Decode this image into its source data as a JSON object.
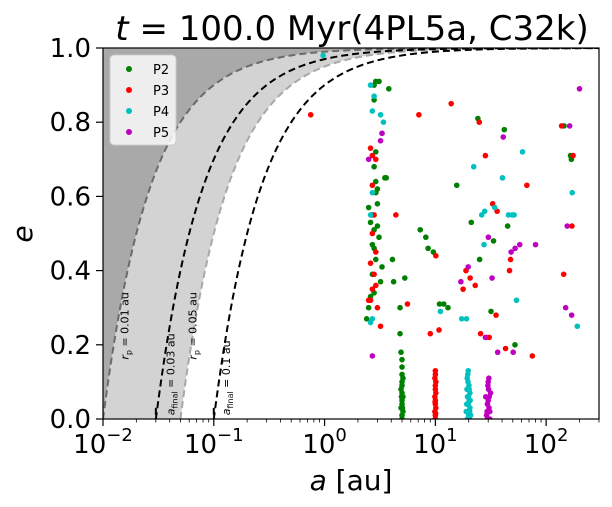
{
  "chart_data": {
    "type": "scatter",
    "title": "t = 100.0 Myr(4PL5a, C32k)",
    "title_parts": {
      "t": "t",
      "eq": " = 100.0 Myr(4PL5a, C32k)"
    },
    "xlabel": {
      "var": "a",
      "unit": " [au]"
    },
    "ylabel": "e",
    "xscale": "log",
    "xlim": [
      0.01,
      300
    ],
    "ylim": [
      0,
      1
    ],
    "x_ticks": [
      {
        "base": "10",
        "exp": "−2",
        "v": 0.01
      },
      {
        "base": "10",
        "exp": "−1",
        "v": 0.1
      },
      {
        "base": "10",
        "exp": "0",
        "v": 1
      },
      {
        "base": "10",
        "exp": "1",
        "v": 10
      },
      {
        "base": "10",
        "exp": "2",
        "v": 100
      }
    ],
    "y_ticks": [
      {
        "label": "0.0",
        "v": 0
      },
      {
        "label": "0.2",
        "v": 0.2
      },
      {
        "label": "0.4",
        "v": 0.4
      },
      {
        "label": "0.6",
        "v": 0.6
      },
      {
        "label": "0.8",
        "v": 0.8
      },
      {
        "label": "1.0",
        "v": 1.0
      }
    ],
    "curves": [
      {
        "name": "rp-0.01",
        "rp": 0.01,
        "style": "dashed-gray"
      },
      {
        "name": "rp-0.05",
        "rp": 0.05,
        "style": "dashed-lightgray"
      },
      {
        "name": "afinal-0.03",
        "rp": 0.03,
        "style": "dashed-black"
      },
      {
        "name": "afinal-0.1",
        "rp": 0.1,
        "style": "dashed-black"
      }
    ],
    "annotations": [
      {
        "name": "rp-001-label",
        "pre": "r",
        "sub": "p",
        "post": " = 0.01 au",
        "x": 0.017,
        "y": 0.16
      },
      {
        "name": "rp-005-label",
        "pre": "r",
        "sub": "p",
        "post": " = 0.05 au",
        "x": 0.07,
        "y": 0.16
      },
      {
        "name": "afinal-003-label",
        "pre": "a",
        "sub": "final",
        "post": " = 0.03 au",
        "x": 0.044,
        "y": 0.01
      },
      {
        "name": "afinal-01-label",
        "pre": "a",
        "sub": "final",
        "post": " = 0.1 au",
        "x": 0.14,
        "y": 0.01
      }
    ],
    "series": [
      {
        "name": "P2",
        "color": "#008000",
        "points": [
          [
            2.5,
            0.57
          ],
          [
            2.7,
            0.55
          ],
          [
            2.6,
            0.53
          ],
          [
            2.8,
            0.46
          ],
          [
            2.9,
            0.43
          ],
          [
            2.7,
            0.39
          ],
          [
            2.8,
            0.34
          ],
          [
            2.6,
            0.33
          ],
          [
            2.5,
            0.3
          ],
          [
            2.4,
            0.27
          ],
          [
            2.7,
            0.47
          ],
          [
            2.8,
            0.51
          ],
          [
            3.0,
            0.52
          ],
          [
            3.1,
            0.49
          ],
          [
            3.3,
            0.41
          ],
          [
            3.2,
            0.37
          ],
          [
            2.9,
            0.61
          ],
          [
            2.9,
            0.64
          ],
          [
            2.8,
            0.68
          ],
          [
            2.9,
            0.72
          ],
          [
            2.9,
            0.91
          ],
          [
            2.8,
            0.9
          ],
          [
            3.1,
            0.91
          ],
          [
            2.8,
            0.86
          ],
          [
            3.5,
            0.65
          ],
          [
            3.6,
            0.65
          ],
          [
            3.8,
            0.89
          ],
          [
            3.0,
            0.62
          ],
          [
            3.0,
            0.58
          ],
          [
            4.1,
            0.43
          ],
          [
            4.2,
            0.37
          ],
          [
            4.8,
            0.3
          ],
          [
            4.8,
            0.23
          ],
          [
            4.9,
            0.18
          ],
          [
            5.0,
            0.16
          ],
          [
            5.3,
            0.38
          ],
          [
            7.3,
            0.51
          ],
          [
            8.2,
            0.49
          ],
          [
            8.6,
            0.46
          ],
          [
            9.6,
            0.45
          ],
          [
            10.9,
            0.31
          ],
          [
            11.9,
            0.31
          ],
          [
            13.0,
            0.3
          ],
          [
            15.6,
            0.63
          ],
          [
            21.1,
            0.53
          ],
          [
            24.2,
            0.81
          ],
          [
            25.1,
            0.43
          ],
          [
            31.8,
            0.29
          ],
          [
            33.5,
            0.48
          ],
          [
            41.9,
            0.78
          ],
          [
            44.9,
            0.52
          ],
          [
            52.3,
            0.2
          ],
          [
            169.0,
            0.7
          ],
          [
            166.0,
            0.71
          ],
          [
            145.0,
            0.79
          ]
        ]
      },
      {
        "name": "P2-cluster",
        "color": "#008000",
        "points": [
          [
            5.0,
            0.0
          ],
          [
            5.0,
            0.01
          ],
          [
            5.1,
            0.02
          ],
          [
            4.9,
            0.03
          ],
          [
            5.0,
            0.04
          ],
          [
            5.0,
            0.05
          ],
          [
            5.1,
            0.06
          ],
          [
            5.0,
            0.07
          ],
          [
            4.9,
            0.08
          ],
          [
            5.0,
            0.09
          ],
          [
            5.0,
            0.1
          ],
          [
            5.1,
            0.11
          ],
          [
            5.0,
            0.0
          ],
          [
            5.05,
            0.03
          ],
          [
            4.95,
            0.06
          ],
          [
            5.0,
            0.12
          ],
          [
            5.0,
            0.14
          ]
        ]
      },
      {
        "name": "P3",
        "color": "#ff0000",
        "points": [
          [
            0.75,
            0.82
          ],
          [
            2.6,
            0.73
          ],
          [
            2.7,
            0.71
          ],
          [
            2.9,
            0.7
          ],
          [
            2.7,
            0.63
          ],
          [
            2.8,
            0.55
          ],
          [
            2.7,
            0.5
          ],
          [
            2.9,
            0.45
          ],
          [
            2.6,
            0.42
          ],
          [
            2.8,
            0.39
          ],
          [
            2.7,
            0.35
          ],
          [
            2.6,
            0.32
          ],
          [
            2.5,
            0.32
          ],
          [
            3.0,
            0.3
          ],
          [
            3.2,
            0.25
          ],
          [
            2.9,
            0.36
          ],
          [
            4.4,
            0.55
          ],
          [
            5.6,
            0.31
          ],
          [
            7.1,
            0.82
          ],
          [
            9.0,
            0.23
          ],
          [
            10.1,
            0.44
          ],
          [
            10.8,
            0.24
          ],
          [
            13.9,
            0.85
          ],
          [
            17.8,
            0.35
          ],
          [
            18.9,
            0.4
          ],
          [
            20.6,
            0.38
          ],
          [
            22.9,
            0.36
          ],
          [
            24.9,
            0.8
          ],
          [
            25.6,
            0.23
          ],
          [
            28.3,
            0.71
          ],
          [
            28.9,
            0.22
          ],
          [
            30.6,
            0.22
          ],
          [
            32.9,
            0.58
          ],
          [
            35.3,
            0.28
          ],
          [
            36.1,
            0.56
          ],
          [
            43.0,
            0.19
          ],
          [
            46.7,
            0.4
          ],
          [
            47.7,
            0.43
          ],
          [
            67.0,
            0.63
          ],
          [
            75.0,
            0.17
          ],
          [
            138.0,
            0.79
          ],
          [
            144.0,
            0.39
          ],
          [
            171.0,
            0.52
          ],
          [
            175.0,
            0.71
          ]
        ]
      },
      {
        "name": "P3-cluster",
        "color": "#ff0000",
        "points": [
          [
            10.0,
            0.0
          ],
          [
            10.0,
            0.01
          ],
          [
            9.9,
            0.02
          ],
          [
            10.1,
            0.03
          ],
          [
            10.0,
            0.04
          ],
          [
            10.0,
            0.05
          ],
          [
            9.9,
            0.06
          ],
          [
            10.1,
            0.07
          ],
          [
            10.0,
            0.08
          ],
          [
            10.0,
            0.09
          ],
          [
            10.1,
            0.1
          ],
          [
            9.9,
            0.11
          ],
          [
            10.0,
            0.12
          ],
          [
            10.0,
            0.13
          ],
          [
            10.0,
            0.0
          ],
          [
            10.05,
            0.015
          ],
          [
            9.95,
            0.045
          ]
        ]
      },
      {
        "name": "P4",
        "color": "#00c0c0",
        "points": [
          [
            0.97,
            0.98
          ],
          [
            2.6,
            0.9
          ],
          [
            2.8,
            0.87
          ],
          [
            2.7,
            0.83
          ],
          [
            3.2,
            0.82
          ],
          [
            3.4,
            0.8
          ],
          [
            3.3,
            0.77
          ],
          [
            2.7,
            0.61
          ],
          [
            2.6,
            0.55
          ],
          [
            2.7,
            0.27
          ],
          [
            2.6,
            0.26
          ],
          [
            11.1,
            0.29
          ],
          [
            17.3,
            0.27
          ],
          [
            19.1,
            0.27
          ],
          [
            22.2,
            0.68
          ],
          [
            26.2,
            0.55
          ],
          [
            27.5,
            0.47
          ],
          [
            27.9,
            0.56
          ],
          [
            34.3,
            0.57
          ],
          [
            40.3,
            0.65
          ],
          [
            45.7,
            0.55
          ],
          [
            49.3,
            0.55
          ],
          [
            51.4,
            0.55
          ],
          [
            54.0,
            0.32
          ],
          [
            61.2,
            0.72
          ],
          [
            172.0,
            0.61
          ],
          [
            191.0,
            0.25
          ]
        ]
      },
      {
        "name": "P4-cluster",
        "color": "#00c0c0",
        "points": [
          [
            19.5,
            0.0
          ],
          [
            20.0,
            0.01
          ],
          [
            19.0,
            0.02
          ],
          [
            20.5,
            0.03
          ],
          [
            19.8,
            0.04
          ],
          [
            20.2,
            0.05
          ],
          [
            19.5,
            0.06
          ],
          [
            20.5,
            0.07
          ],
          [
            19.3,
            0.08
          ],
          [
            20.1,
            0.09
          ],
          [
            19.7,
            0.1
          ],
          [
            20.4,
            0.02
          ],
          [
            19.9,
            0.06
          ],
          [
            19.2,
            0.04
          ],
          [
            20.3,
            0.0
          ],
          [
            19.6,
            0.12
          ],
          [
            20.8,
            0.01
          ],
          [
            19.4,
            0.11
          ],
          [
            20.6,
            0.05
          ],
          [
            19.8,
            0.13
          ],
          [
            20.2,
            0.08
          ]
        ]
      },
      {
        "name": "P5",
        "color": "#c000c0",
        "points": [
          [
            2.5,
            0.7
          ],
          [
            2.7,
            0.17
          ],
          [
            3.2,
            0.75
          ],
          [
            3.3,
            0.77
          ],
          [
            17.0,
            0.37
          ],
          [
            19.8,
            0.41
          ],
          [
            28.3,
            0.22
          ],
          [
            30.1,
            0.49
          ],
          [
            32.5,
            0.38
          ],
          [
            36.5,
            0.18
          ],
          [
            41.0,
            0.76
          ],
          [
            48.3,
            0.45
          ],
          [
            50.4,
            0.18
          ],
          [
            52.5,
            0.46
          ],
          [
            57.8,
            0.47
          ],
          [
            80.2,
            0.47
          ],
          [
            150.0,
            0.3
          ],
          [
            155.0,
            0.52
          ],
          [
            163.0,
            0.79
          ],
          [
            170.0,
            0.28
          ],
          [
            200.0,
            0.89
          ]
        ]
      },
      {
        "name": "P5-cluster",
        "color": "#c000c0",
        "points": [
          [
            30.0,
            0.0
          ],
          [
            29.0,
            0.01
          ],
          [
            31.0,
            0.02
          ],
          [
            30.5,
            0.03
          ],
          [
            29.5,
            0.04
          ],
          [
            30.0,
            0.05
          ],
          [
            28.5,
            0.06
          ],
          [
            31.5,
            0.07
          ],
          [
            30.2,
            0.08
          ],
          [
            29.8,
            0.09
          ],
          [
            30.0,
            0.1
          ],
          [
            30.4,
            0.11
          ],
          [
            29.3,
            0.02
          ],
          [
            31.0,
            0.0
          ],
          [
            30.6,
            0.06
          ],
          [
            29.6,
            0.0
          ]
        ]
      }
    ],
    "legend": {
      "position": "top-left",
      "entries": [
        {
          "label": "P2",
          "color": "#008000"
        },
        {
          "label": "P3",
          "color": "#ff0000"
        },
        {
          "label": "P4",
          "color": "#00c0c0"
        },
        {
          "label": "P5",
          "color": "#c000c0"
        }
      ]
    }
  }
}
